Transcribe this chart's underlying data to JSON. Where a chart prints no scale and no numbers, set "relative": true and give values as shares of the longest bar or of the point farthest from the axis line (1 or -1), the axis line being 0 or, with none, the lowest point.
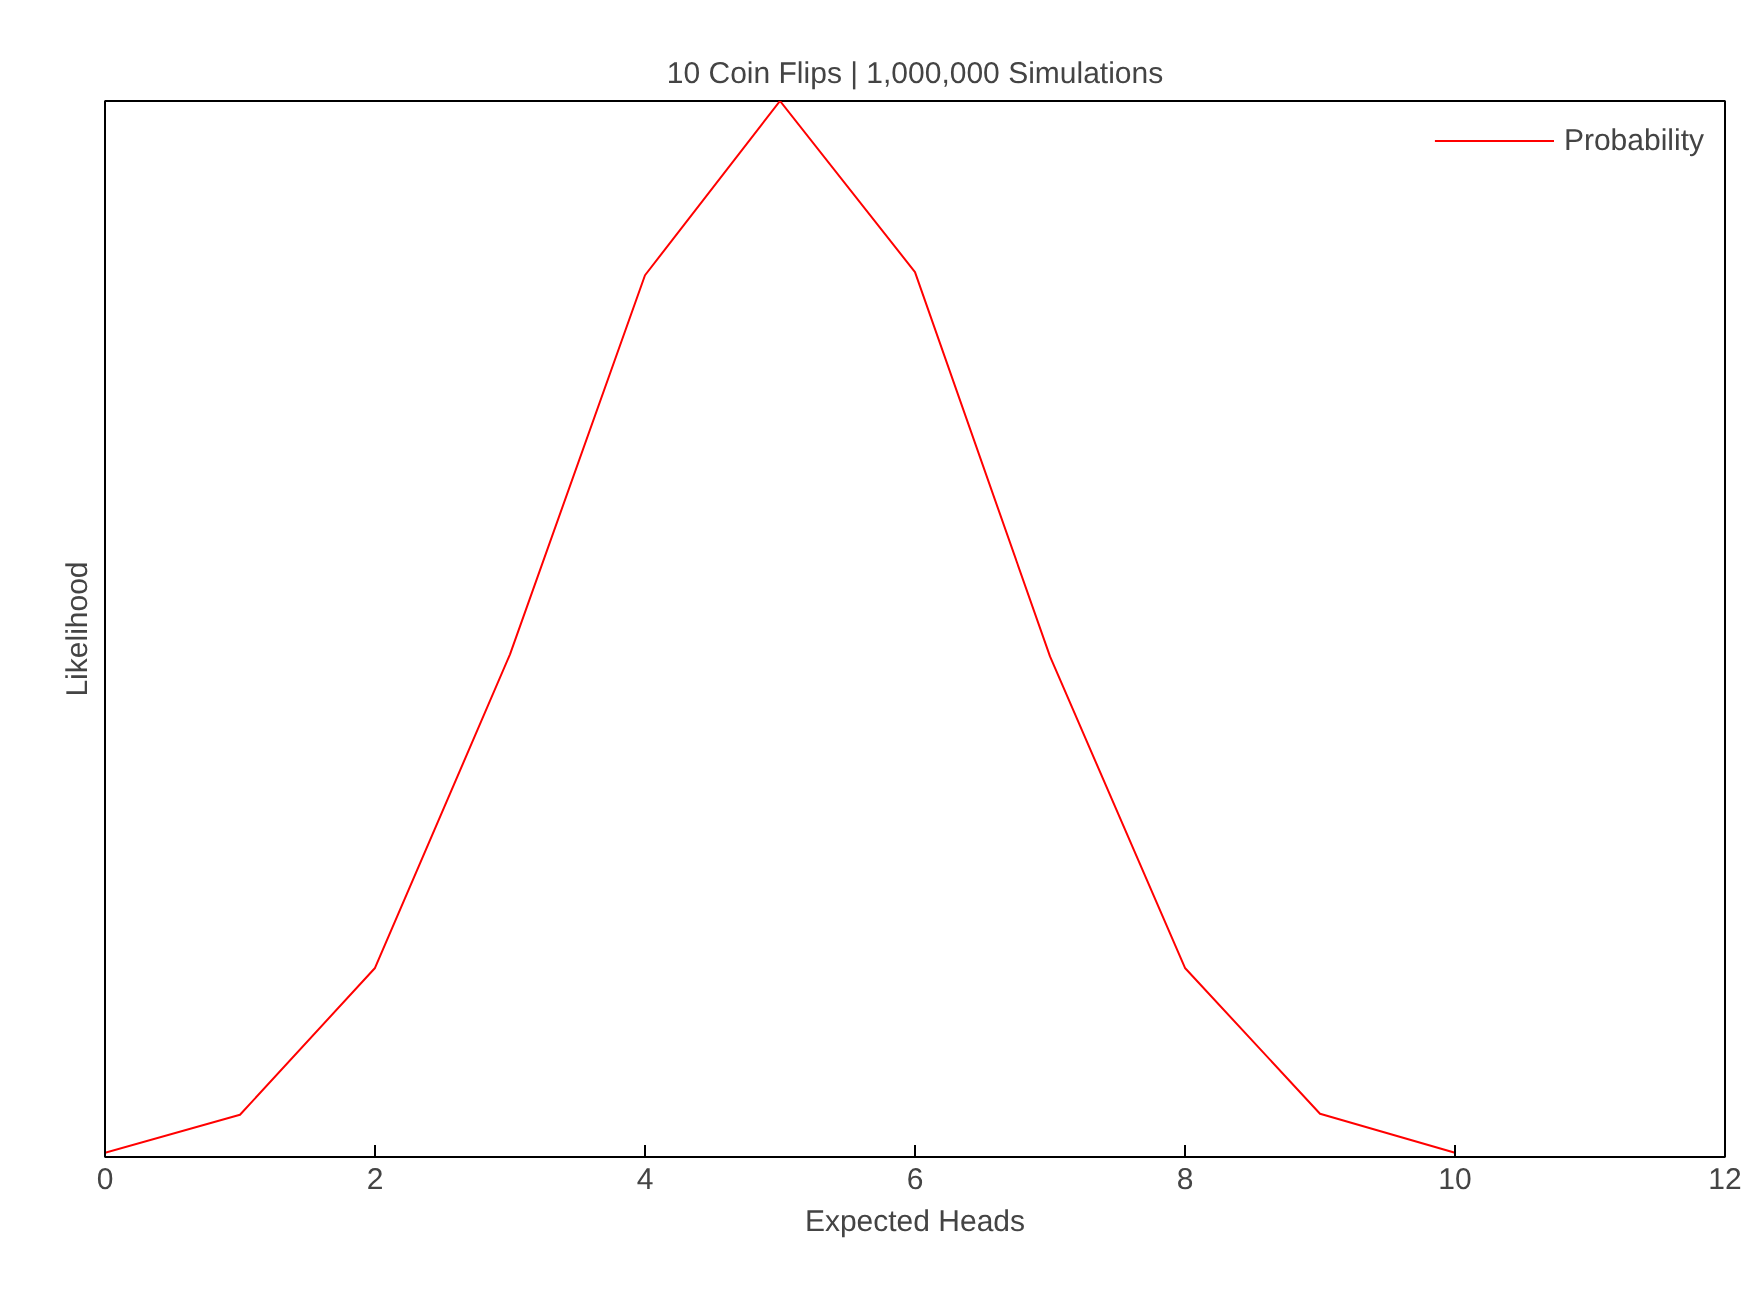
{
  "chart_data": {
    "type": "line",
    "title": "10 Coin Flips | 1,000,000 Simulations",
    "xlabel": "Expected Heads",
    "ylabel": "Likelihood",
    "relative": true,
    "x": [
      0,
      1,
      2,
      3,
      4,
      5,
      6,
      7,
      8,
      9,
      10
    ],
    "series": [
      {
        "name": "Probability",
        "color": "#ff0000",
        "values": [
          0.004,
          0.04,
          0.179,
          0.476,
          0.835,
          1,
          0.838,
          0.474,
          0.179,
          0.041,
          0.004
        ]
      }
    ],
    "xlim": [
      0,
      12
    ],
    "xticks": [
      0,
      2,
      4,
      6,
      8,
      10,
      12
    ],
    "legend": "top right",
    "tick_labels": "x"
  }
}
